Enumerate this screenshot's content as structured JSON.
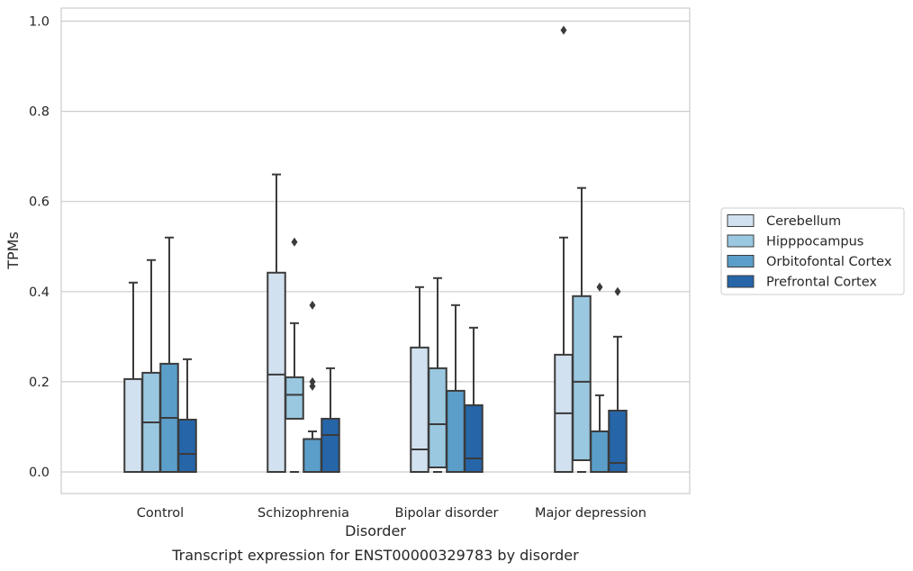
{
  "chart_data": {
    "type": "box",
    "caption": "Transcript expression for ENST00000329783 by disorder",
    "xlabel": "Disorder",
    "ylabel": "TPMs",
    "ylim": [
      -0.045,
      1.03
    ],
    "yticks": [
      0.0,
      0.2,
      0.4,
      0.6,
      0.8,
      1.0
    ],
    "ytick_labels": [
      "0.0",
      "0.2",
      "0.4",
      "0.6",
      "0.8",
      "1.0"
    ],
    "grid": "horizontal",
    "legend_position": "right-outside",
    "categories": [
      "Control",
      "Schizophrenia",
      "Bipolar disorder",
      "Major depression"
    ],
    "series": [
      {
        "name": "Cerebellum",
        "color": "#d2e1f0",
        "boxes": [
          {
            "min": 0.0,
            "q1": 0.0,
            "median": 0.0,
            "q3": 0.206,
            "max": 0.42,
            "outliers": []
          },
          {
            "min": 0.0,
            "q1": 0.0,
            "median": 0.216,
            "q3": 0.442,
            "max": 0.66,
            "outliers": []
          },
          {
            "min": 0.0,
            "q1": 0.0,
            "median": 0.05,
            "q3": 0.276,
            "max": 0.41,
            "outliers": []
          },
          {
            "min": 0.0,
            "q1": 0.0,
            "median": 0.13,
            "q3": 0.26,
            "max": 0.52,
            "outliers": [
              0.98
            ]
          }
        ]
      },
      {
        "name": "Hipppocampus",
        "color": "#9ac8e0",
        "boxes": [
          {
            "min": 0.0,
            "q1": 0.0,
            "median": 0.11,
            "q3": 0.22,
            "max": 0.47,
            "outliers": []
          },
          {
            "min": 0.0,
            "q1": 0.118,
            "median": 0.171,
            "q3": 0.21,
            "max": 0.33,
            "outliers": [
              0.51
            ]
          },
          {
            "min": 0.0,
            "q1": 0.01,
            "median": 0.106,
            "q3": 0.23,
            "max": 0.43,
            "outliers": []
          },
          {
            "min": 0.0,
            "q1": 0.026,
            "median": 0.2,
            "q3": 0.39,
            "max": 0.63,
            "outliers": []
          }
        ]
      },
      {
        "name": "Orbitofontal Cortex",
        "color": "#5b9ec9",
        "boxes": [
          {
            "min": 0.0,
            "q1": 0.0,
            "median": 0.12,
            "q3": 0.24,
            "max": 0.52,
            "outliers": []
          },
          {
            "min": 0.0,
            "q1": 0.0,
            "median": 0.0,
            "q3": 0.073,
            "max": 0.09,
            "outliers": [
              0.37,
              0.2,
              0.19
            ]
          },
          {
            "min": 0.0,
            "q1": 0.0,
            "median": 0.0,
            "q3": 0.18,
            "max": 0.37,
            "outliers": []
          },
          {
            "min": 0.0,
            "q1": 0.0,
            "median": 0.0,
            "q3": 0.09,
            "max": 0.17,
            "outliers": [
              0.41
            ]
          }
        ]
      },
      {
        "name": "Prefrontal Cortex",
        "color": "#2565a8",
        "boxes": [
          {
            "min": 0.0,
            "q1": 0.0,
            "median": 0.04,
            "q3": 0.116,
            "max": 0.25,
            "outliers": []
          },
          {
            "min": 0.0,
            "q1": 0.0,
            "median": 0.082,
            "q3": 0.118,
            "max": 0.23,
            "outliers": []
          },
          {
            "min": 0.0,
            "q1": 0.0,
            "median": 0.03,
            "q3": 0.148,
            "max": 0.32,
            "outliers": []
          },
          {
            "min": 0.0,
            "q1": 0.0,
            "median": 0.02,
            "q3": 0.136,
            "max": 0.3,
            "outliers": [
              0.4
            ]
          }
        ]
      }
    ]
  }
}
